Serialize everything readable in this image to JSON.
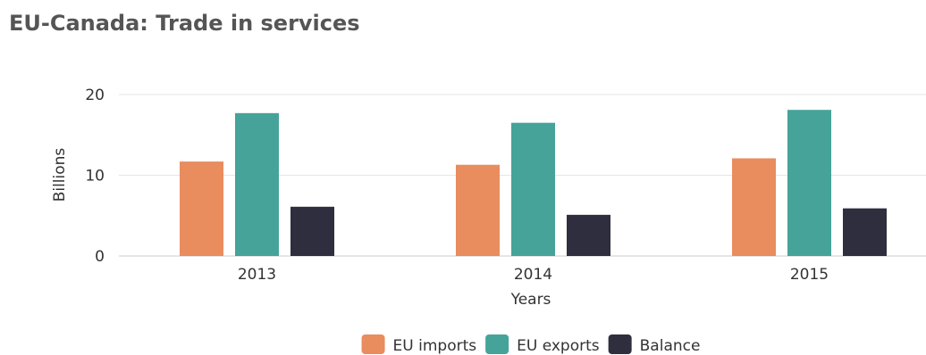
{
  "chart_data": {
    "type": "bar",
    "title": "EU-Canada: Trade in services",
    "xlabel": "Years",
    "ylabel": "Billions",
    "categories": [
      "2013",
      "2014",
      "2015"
    ],
    "ylim": [
      0,
      20
    ],
    "yticks": [
      0,
      10,
      20
    ],
    "grid": true,
    "legend": "bottom-center",
    "series": [
      {
        "name": "EU imports",
        "values": [
          11.7,
          11.3,
          12.1
        ],
        "color": "#E98C5E"
      },
      {
        "name": "EU exports",
        "values": [
          17.7,
          16.5,
          18.1
        ],
        "color": "#45A39A"
      },
      {
        "name": "Balance",
        "values": [
          6.1,
          5.1,
          5.9
        ],
        "color": "#2E2E3E"
      }
    ]
  }
}
